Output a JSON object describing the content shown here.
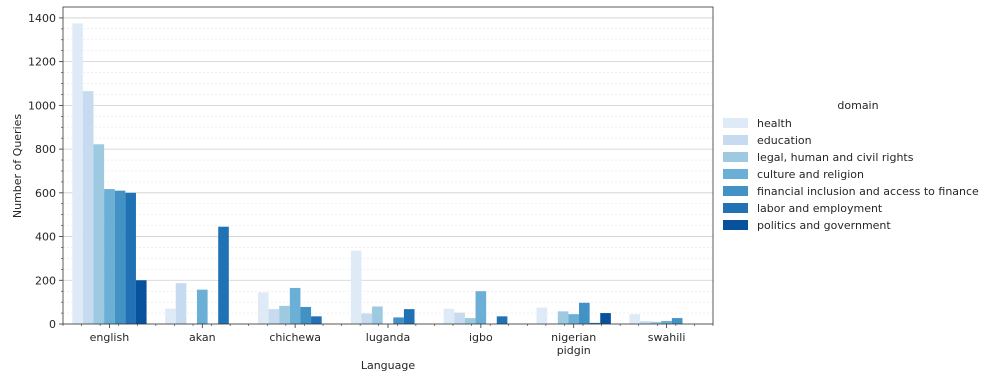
{
  "chart_data": {
    "type": "bar",
    "xlabel": "Language",
    "ylabel": "Number of Queries",
    "ylim": [
      0,
      1450
    ],
    "yticks": [
      0,
      200,
      400,
      600,
      800,
      1000,
      1200,
      1400
    ],
    "grid": true,
    "legend": {
      "title": "domain",
      "placement": "right"
    },
    "categories": [
      "english",
      "akan",
      "chichewa",
      "luganda",
      "igbo",
      "nigerian pidgin",
      "swahili"
    ],
    "category_labels": [
      [
        "english"
      ],
      [
        "akan"
      ],
      [
        "chichewa"
      ],
      [
        "luganda"
      ],
      [
        "igbo"
      ],
      [
        "nigerian",
        "pidgin"
      ],
      [
        "swahili"
      ]
    ],
    "series": [
      {
        "name": "health",
        "color": "#deebf7",
        "values": [
          1375,
          70,
          145,
          335,
          70,
          75,
          45
        ]
      },
      {
        "name": "education",
        "color": "#c6dbef",
        "values": [
          1065,
          187,
          68,
          48,
          52,
          0,
          13
        ]
      },
      {
        "name": "legal, human and civil rights",
        "color": "#9ecae1",
        "values": [
          822,
          0,
          83,
          80,
          27,
          58,
          10
        ]
      },
      {
        "name": "culture and religion",
        "color": "#6baed6",
        "values": [
          617,
          157,
          165,
          0,
          150,
          45,
          14
        ]
      },
      {
        "name": "financial inclusion and access to finance",
        "color": "#4292c6",
        "values": [
          610,
          0,
          78,
          30,
          0,
          97,
          27
        ]
      },
      {
        "name": "labor and employment",
        "color": "#2171b5",
        "values": [
          600,
          445,
          35,
          68,
          35,
          5,
          0
        ]
      },
      {
        "name": "politics and government",
        "color": "#08519c",
        "values": [
          200,
          0,
          0,
          0,
          0,
          50,
          0
        ]
      }
    ]
  }
}
